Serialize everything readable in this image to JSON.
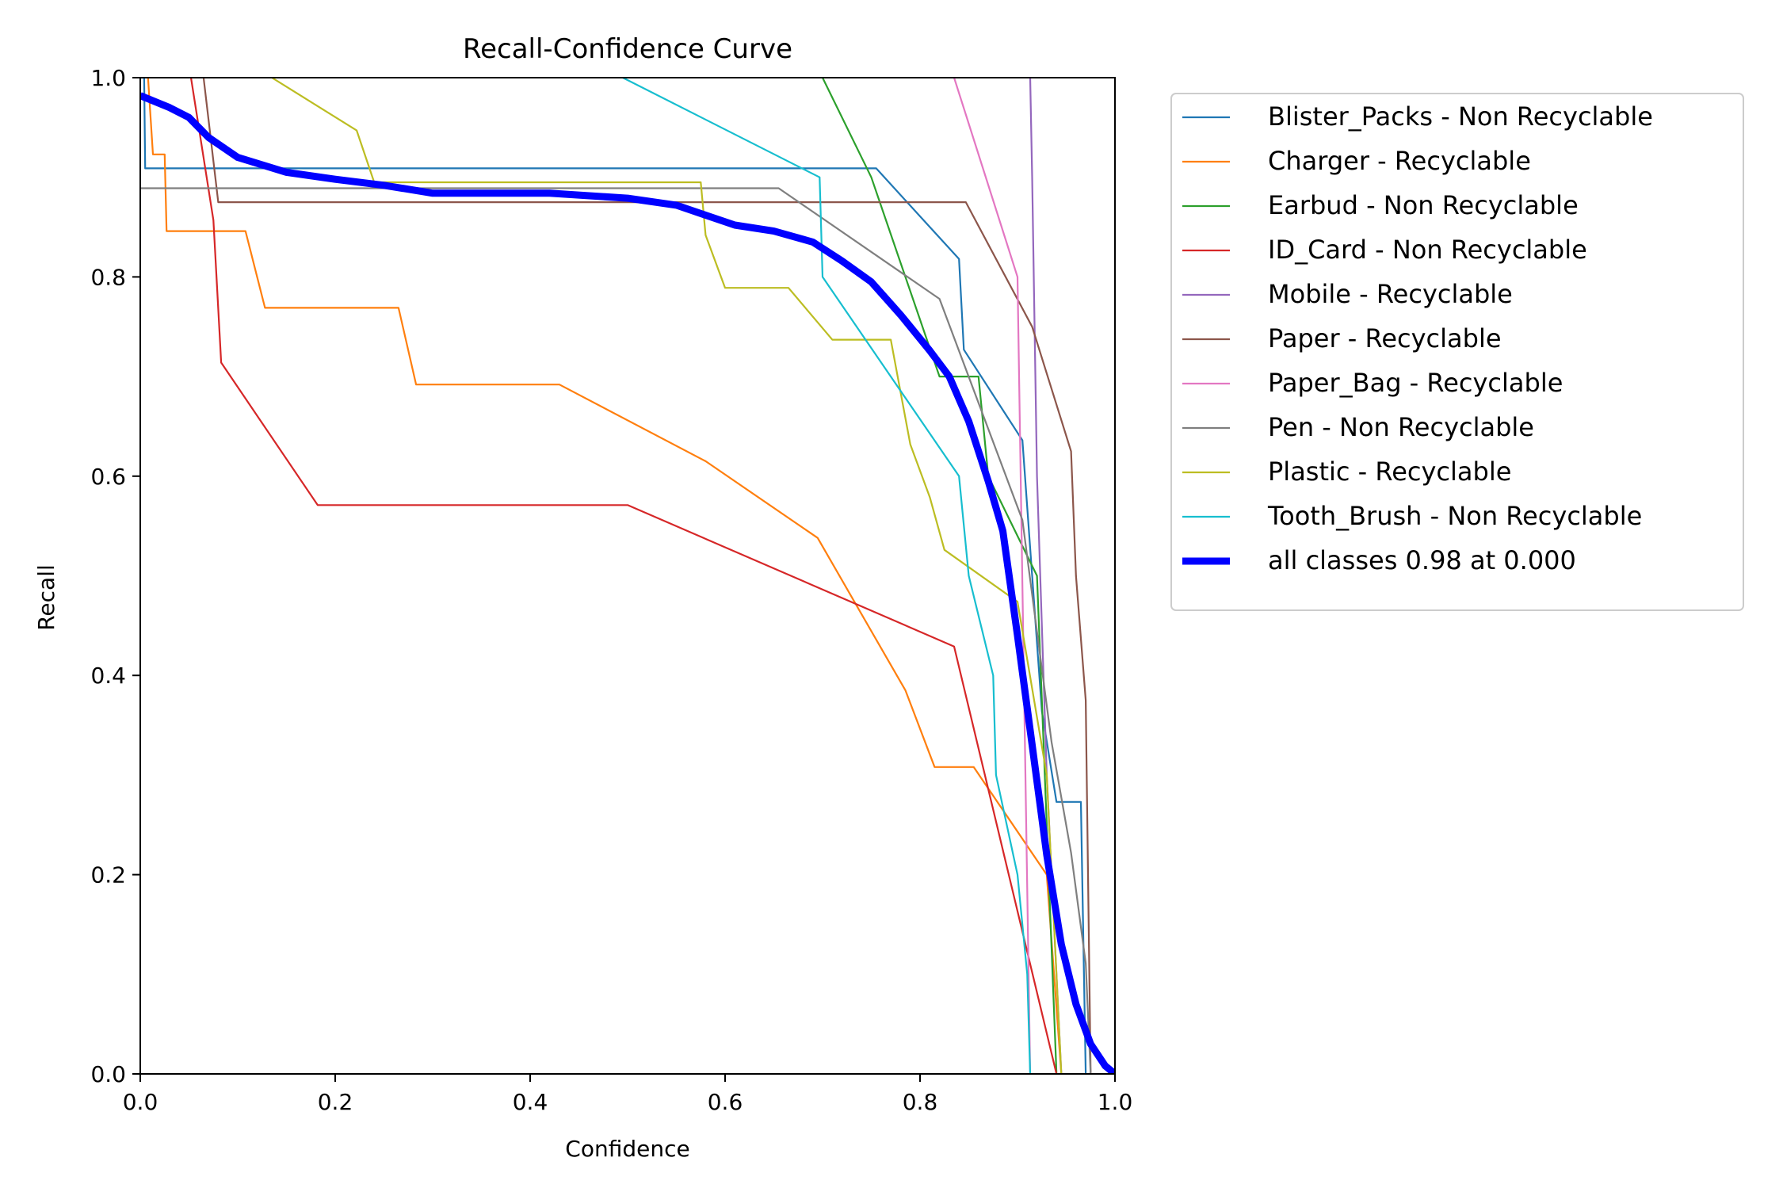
{
  "chart_data": {
    "type": "line",
    "title": "Recall-Confidence Curve",
    "xlabel": "Confidence",
    "ylabel": "Recall",
    "xlim": [
      0,
      1
    ],
    "ylim": [
      0,
      1
    ],
    "x_ticks": [
      0.0,
      0.2,
      0.4,
      0.6,
      0.8,
      1.0
    ],
    "y_ticks": [
      0.0,
      0.2,
      0.4,
      0.6,
      0.8,
      1.0
    ],
    "x_tick_labels": [
      "0.0",
      "0.2",
      "0.4",
      "0.6",
      "0.8",
      "1.0"
    ],
    "y_tick_labels": [
      "0.0",
      "0.2",
      "0.4",
      "0.6",
      "0.8",
      "1.0"
    ],
    "grid": false,
    "legend_position": "outside-right-top",
    "series": [
      {
        "name": "Blister_Packs - Non Recyclable",
        "color": "#1f77b4",
        "points": [
          [
            0.0,
            1.0
          ],
          [
            0.004,
            1.0
          ],
          [
            0.005,
            0.909
          ],
          [
            0.755,
            0.909
          ],
          [
            0.84,
            0.818
          ],
          [
            0.845,
            0.727
          ],
          [
            0.905,
            0.636
          ],
          [
            0.925,
            0.364
          ],
          [
            0.94,
            0.273
          ],
          [
            0.965,
            0.273
          ],
          [
            0.97,
            0.0
          ]
        ]
      },
      {
        "name": "Charger - Recyclable",
        "color": "#ff7f0e",
        "points": [
          [
            0.008,
            1.0
          ],
          [
            0.013,
            0.923
          ],
          [
            0.025,
            0.923
          ],
          [
            0.027,
            0.846
          ],
          [
            0.108,
            0.846
          ],
          [
            0.128,
            0.769
          ],
          [
            0.265,
            0.769
          ],
          [
            0.283,
            0.692
          ],
          [
            0.43,
            0.692
          ],
          [
            0.58,
            0.615
          ],
          [
            0.695,
            0.538
          ],
          [
            0.785,
            0.385
          ],
          [
            0.815,
            0.308
          ],
          [
            0.855,
            0.308
          ],
          [
            0.93,
            0.2
          ],
          [
            0.945,
            0.0
          ]
        ]
      },
      {
        "name": "Earbud - Non Recyclable",
        "color": "#2ca02c",
        "points": [
          [
            0.7,
            1.0
          ],
          [
            0.75,
            0.9
          ],
          [
            0.82,
            0.7
          ],
          [
            0.86,
            0.7
          ],
          [
            0.87,
            0.6
          ],
          [
            0.92,
            0.5
          ],
          [
            0.94,
            0.0
          ]
        ]
      },
      {
        "name": "ID_Card - Non Recyclable",
        "color": "#d62728",
        "points": [
          [
            0.052,
            1.0
          ],
          [
            0.075,
            0.857
          ],
          [
            0.083,
            0.714
          ],
          [
            0.182,
            0.571
          ],
          [
            0.5,
            0.571
          ],
          [
            0.835,
            0.429
          ],
          [
            0.94,
            0.0
          ]
        ]
      },
      {
        "name": "Mobile - Recyclable",
        "color": "#9467bd",
        "points": [
          [
            0.913,
            1.0
          ],
          [
            0.915,
            0.9
          ],
          [
            0.92,
            0.6
          ],
          [
            0.93,
            0.3
          ],
          [
            0.945,
            0.0
          ]
        ]
      },
      {
        "name": "Paper - Recyclable",
        "color": "#8c564b",
        "points": [
          [
            0.065,
            1.0
          ],
          [
            0.08,
            0.875
          ],
          [
            0.847,
            0.875
          ],
          [
            0.915,
            0.75
          ],
          [
            0.955,
            0.625
          ],
          [
            0.96,
            0.5
          ],
          [
            0.97,
            0.375
          ],
          [
            0.975,
            0.0
          ]
        ]
      },
      {
        "name": "Paper_Bag - Recyclable",
        "color": "#e377c2",
        "points": [
          [
            0.835,
            1.0
          ],
          [
            0.9,
            0.8
          ],
          [
            0.913,
            0.0
          ]
        ]
      },
      {
        "name": "Pen - Non Recyclable",
        "color": "#7f7f7f",
        "points": [
          [
            0.0,
            0.889
          ],
          [
            0.655,
            0.889
          ],
          [
            0.82,
            0.778
          ],
          [
            0.905,
            0.556
          ],
          [
            0.92,
            0.444
          ],
          [
            0.935,
            0.333
          ],
          [
            0.955,
            0.222
          ],
          [
            0.97,
            0.111
          ],
          [
            0.975,
            0.0
          ]
        ]
      },
      {
        "name": "Plastic - Recyclable",
        "color": "#bcbd22",
        "points": [
          [
            0.135,
            1.0
          ],
          [
            0.222,
            0.947
          ],
          [
            0.24,
            0.895
          ],
          [
            0.575,
            0.895
          ],
          [
            0.58,
            0.842
          ],
          [
            0.6,
            0.789
          ],
          [
            0.665,
            0.789
          ],
          [
            0.71,
            0.737
          ],
          [
            0.77,
            0.737
          ],
          [
            0.79,
            0.632
          ],
          [
            0.81,
            0.579
          ],
          [
            0.825,
            0.526
          ],
          [
            0.9,
            0.474
          ],
          [
            0.93,
            0.3
          ],
          [
            0.945,
            0.0
          ]
        ]
      },
      {
        "name": "Tooth_Brush - Non Recyclable",
        "color": "#17becf",
        "points": [
          [
            0.495,
            1.0
          ],
          [
            0.697,
            0.9
          ],
          [
            0.7,
            0.8
          ],
          [
            0.84,
            0.6
          ],
          [
            0.85,
            0.5
          ],
          [
            0.875,
            0.4
          ],
          [
            0.878,
            0.3
          ],
          [
            0.9,
            0.2
          ],
          [
            0.91,
            0.1
          ],
          [
            0.913,
            0.0
          ]
        ]
      },
      {
        "name": "all classes 0.98 at 0.000",
        "color": "#0000ff",
        "bold": true,
        "points": [
          [
            0.0,
            0.982
          ],
          [
            0.03,
            0.97
          ],
          [
            0.05,
            0.96
          ],
          [
            0.07,
            0.94
          ],
          [
            0.1,
            0.92
          ],
          [
            0.15,
            0.905
          ],
          [
            0.2,
            0.898
          ],
          [
            0.25,
            0.892
          ],
          [
            0.3,
            0.884
          ],
          [
            0.35,
            0.884
          ],
          [
            0.42,
            0.884
          ],
          [
            0.5,
            0.879
          ],
          [
            0.55,
            0.872
          ],
          [
            0.58,
            0.862
          ],
          [
            0.61,
            0.852
          ],
          [
            0.65,
            0.846
          ],
          [
            0.69,
            0.835
          ],
          [
            0.72,
            0.816
          ],
          [
            0.75,
            0.795
          ],
          [
            0.78,
            0.762
          ],
          [
            0.81,
            0.726
          ],
          [
            0.83,
            0.7
          ],
          [
            0.85,
            0.655
          ],
          [
            0.87,
            0.595
          ],
          [
            0.885,
            0.545
          ],
          [
            0.9,
            0.44
          ],
          [
            0.915,
            0.33
          ],
          [
            0.93,
            0.22
          ],
          [
            0.945,
            0.13
          ],
          [
            0.96,
            0.07
          ],
          [
            0.975,
            0.03
          ],
          [
            0.99,
            0.008
          ],
          [
            1.0,
            0.0
          ]
        ]
      }
    ]
  }
}
